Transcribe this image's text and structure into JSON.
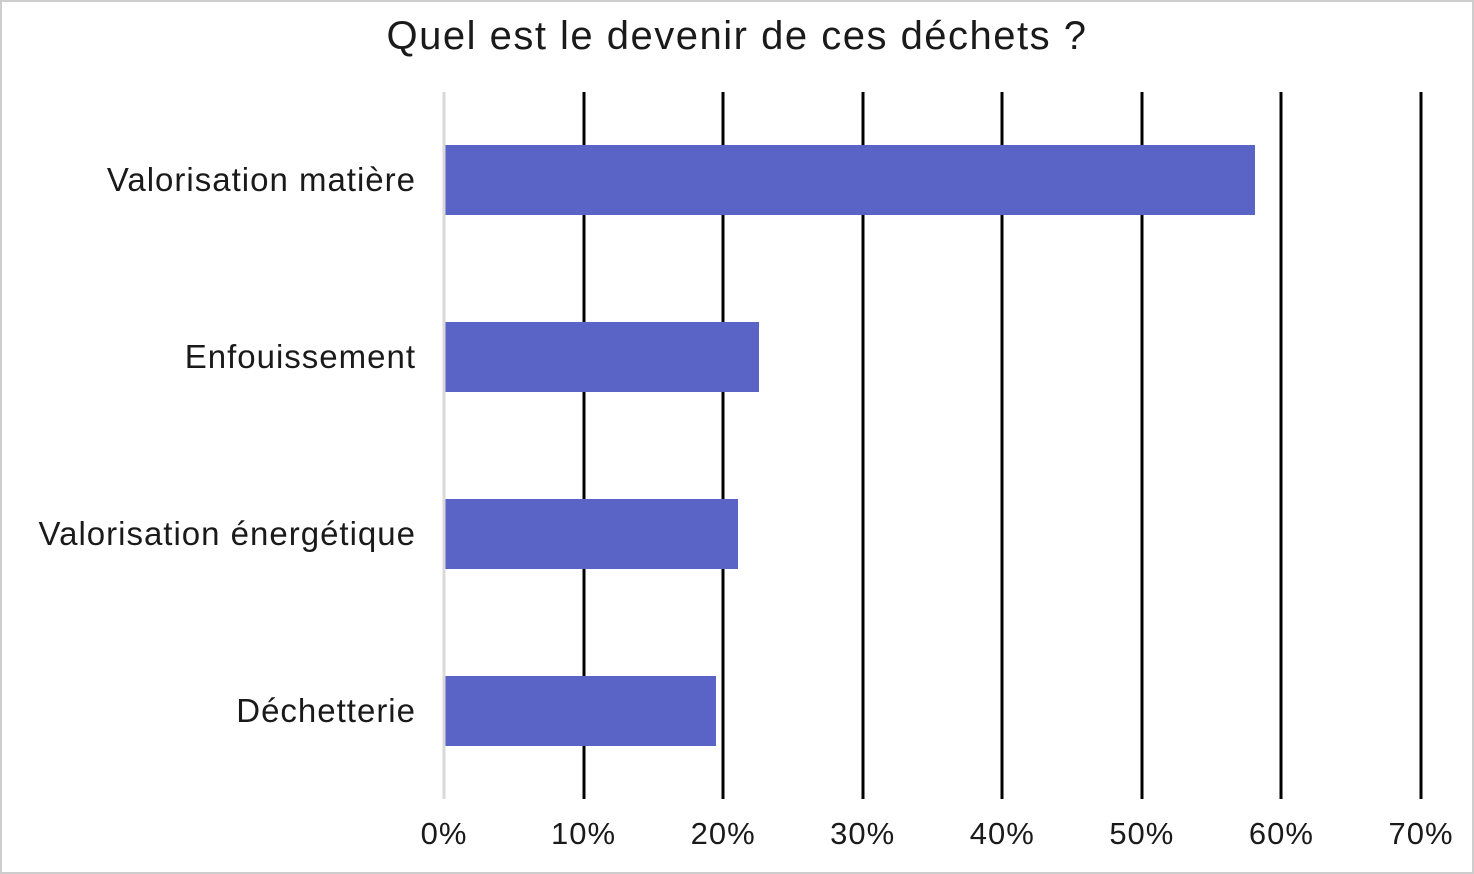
{
  "page": {
    "background_color": "#ffffff",
    "border_color": "#cdcdcd"
  },
  "chart_data": {
    "type": "bar",
    "orientation": "horizontal",
    "title": "Quel est le devenir de ces déchets ?",
    "categories": [
      "Valorisation matière",
      "Enfouissement",
      "Valorisation énergétique",
      "Déchetterie"
    ],
    "values": [
      58,
      22.5,
      21,
      19.4
    ],
    "value_unit": "%",
    "xlabel": "",
    "ylabel": "",
    "xlim": [
      0,
      70
    ],
    "x_ticks": [
      0,
      10,
      20,
      30,
      40,
      50,
      60,
      70
    ],
    "x_tick_labels": [
      "0%",
      "10%",
      "20%",
      "30%",
      "40%",
      "50%",
      "60%",
      "70%"
    ],
    "grid": "vertical-on",
    "legend_position": "none",
    "bar_color": "#5A63C6",
    "gridline_color": "#000000",
    "zero_line_color": "#D9D9D9",
    "text_color": "#1a1a1a"
  }
}
